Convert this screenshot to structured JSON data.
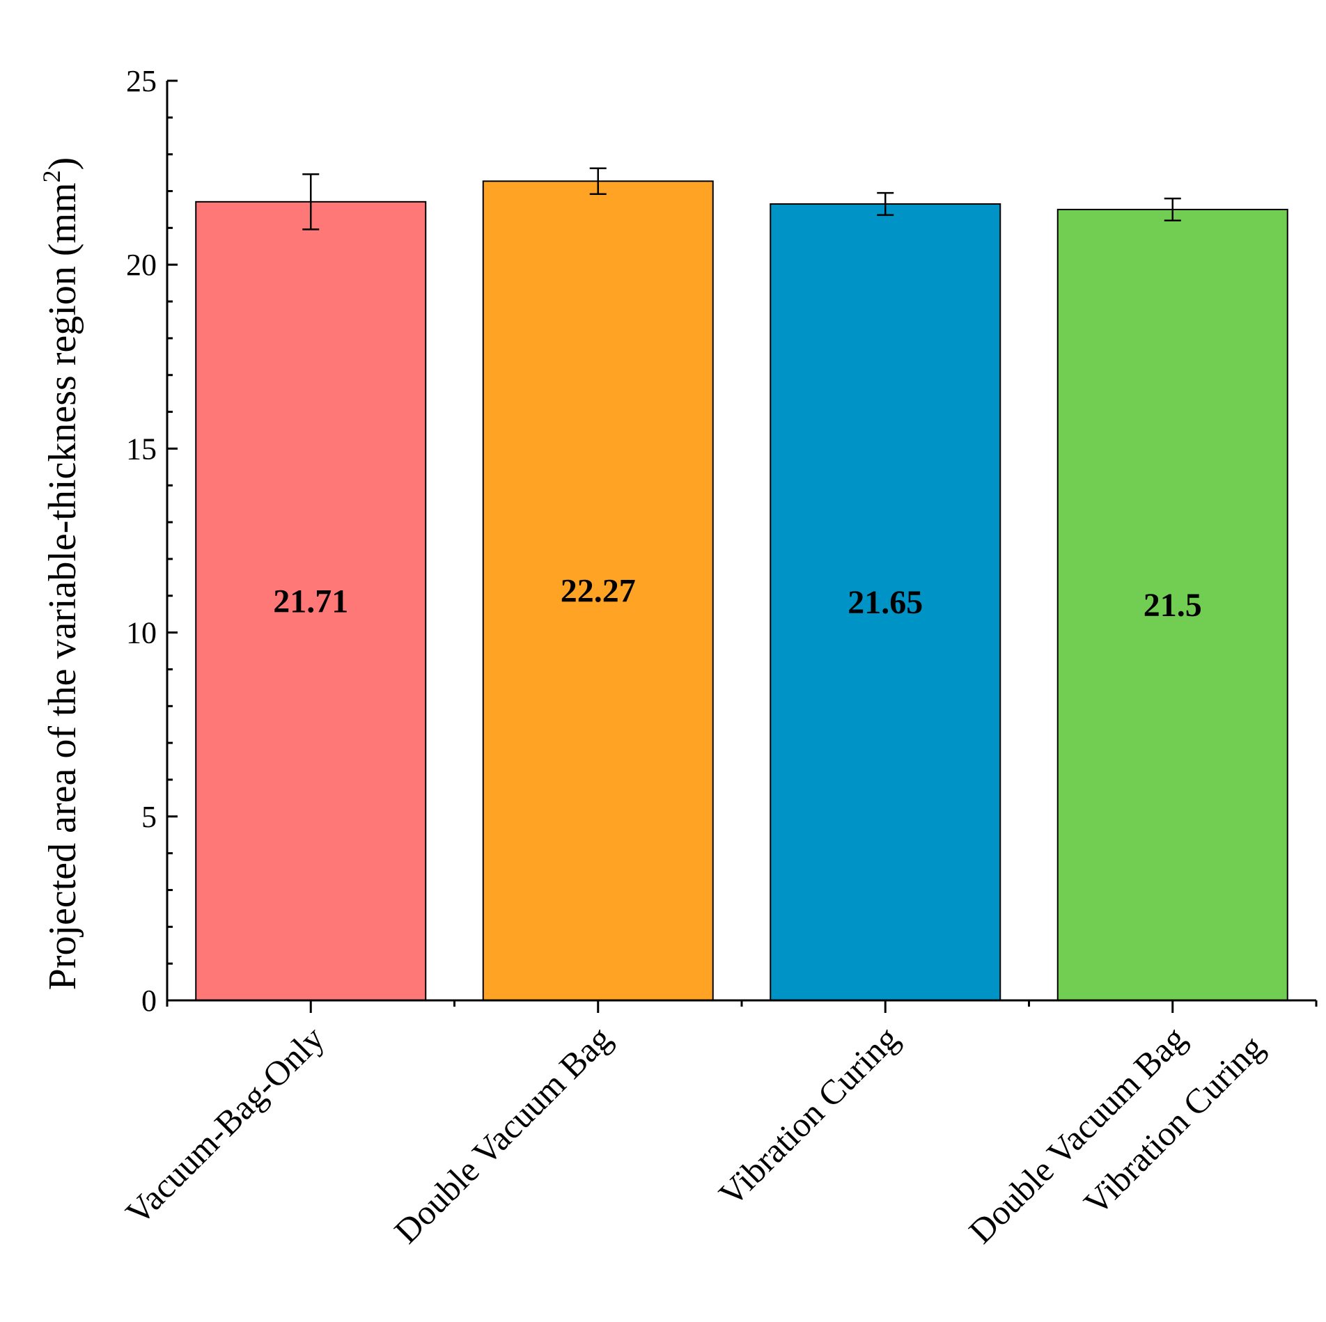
{
  "chart_data": {
    "type": "bar",
    "categories": [
      [
        "Vacuum-Bag-Only"
      ],
      [
        "Double Vacuum Bag"
      ],
      [
        "Vibration Curing"
      ],
      [
        "Double Vacuum Bag",
        "Vibration Curing"
      ]
    ],
    "values": [
      21.71,
      22.27,
      21.65,
      21.5
    ],
    "value_labels": [
      "21.71",
      "22.27",
      "21.65",
      "21.5"
    ],
    "error_bars": [
      0.75,
      0.35,
      0.3,
      0.3
    ],
    "colors": [
      "#ff7878",
      "#ffa324",
      "#0094c6",
      "#72ce52"
    ],
    "ylabel_main": "Projected area of the variable-thickness region (mm",
    "ylabel_sup": "2",
    "ylabel_end": ")",
    "ylim": [
      0,
      25
    ],
    "yticks": [
      0,
      5,
      10,
      15,
      20,
      25
    ],
    "ytick_labels": [
      "0",
      "5",
      "10",
      "15",
      "20",
      "25"
    ],
    "grid": false,
    "legend": false
  }
}
